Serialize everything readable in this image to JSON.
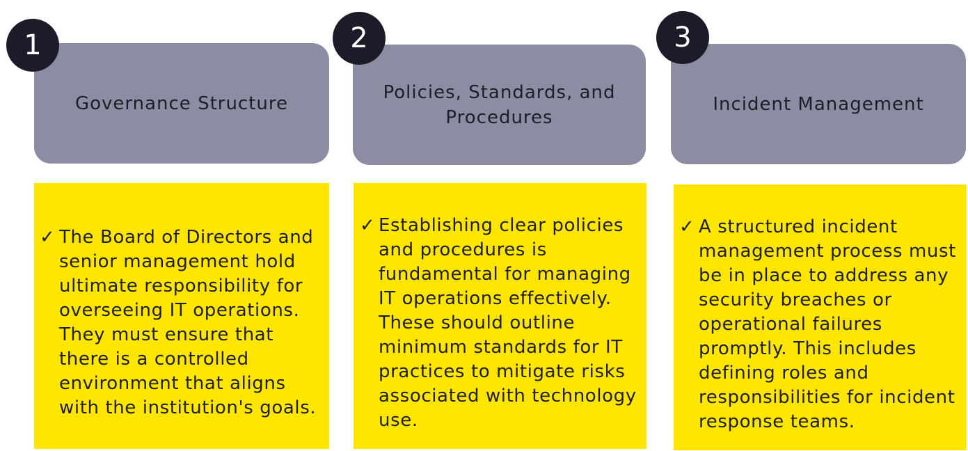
{
  "columns": [
    {
      "number": "1",
      "title": "Governance Structure",
      "check_icon": "✓",
      "body": "The Board of Directors and senior management hold ultimate responsibility for overseeing IT operations. They must ensure that there is a controlled environment that aligns with the institution's goals."
    },
    {
      "number": "2",
      "title": "Policies, Standards, and\nProcedures",
      "check_icon": "✓",
      "body": "Establishing clear policies and procedures is fundamental for managing IT operations effectively. These should outline minimum standards for IT practices to mitigate risks associated with technology use."
    },
    {
      "number": "3",
      "title": "Incident Management",
      "check_icon": "✓",
      "body": "A structured incident management process must be in place to address any security breaches or operational failures promptly. This includes defining roles and responsibilities for incident response teams."
    }
  ],
  "colors": {
    "header_fill": "#8c8ca2",
    "badge_fill": "#1c1c28",
    "content_fill": "#ffe600",
    "text": "#1e1e28"
  }
}
